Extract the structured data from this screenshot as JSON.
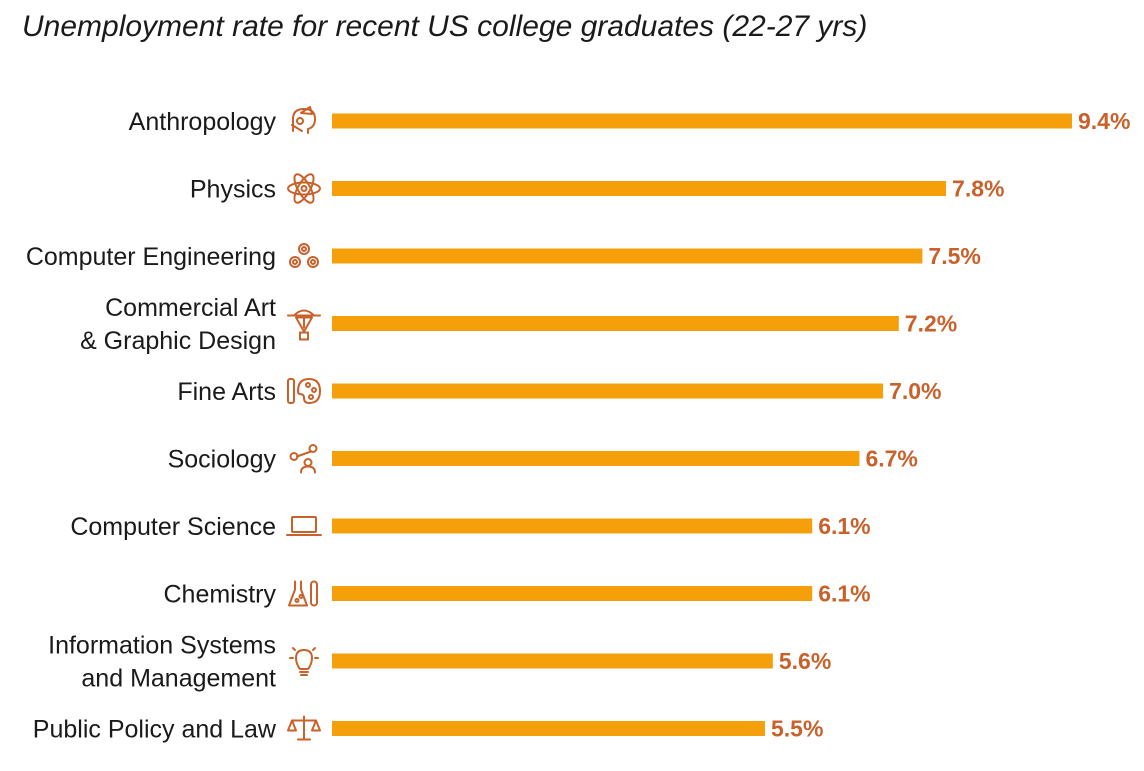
{
  "chart_data": {
    "type": "bar",
    "orientation": "horizontal",
    "title": "Unemployment rate for recent US college graduates (22-27 yrs)",
    "xlabel": "",
    "ylabel": "",
    "xlim": [
      0,
      9.4
    ],
    "grid": false,
    "categories": [
      "Anthropology",
      "Physics",
      "Computer Engineering",
      "Commercial Art\n& Graphic Design",
      "Fine Arts",
      "Sociology",
      "Computer Science",
      "Chemistry",
      "Information Systems\nand Management",
      "Public Policy and Law"
    ],
    "values": [
      9.4,
      7.8,
      7.5,
      7.2,
      7.0,
      6.7,
      6.1,
      6.1,
      5.6,
      5.5
    ],
    "value_labels": [
      "9.4%",
      "7.8%",
      "7.5%",
      "7.2%",
      "7.0%",
      "6.7%",
      "6.1%",
      "6.1%",
      "5.6%",
      "5.5%"
    ],
    "icons": [
      "anthropology-icon",
      "atom-icon",
      "gears-icon",
      "pen-nib-icon",
      "palette-icon",
      "people-network-icon",
      "laptop-icon",
      "flask-icon",
      "lightbulb-icon",
      "scales-icon"
    ],
    "colors": {
      "bar": "#f5a00a",
      "value_label": "#c9612a",
      "icon": "#c9612a",
      "text": "#1a1a1a"
    }
  }
}
